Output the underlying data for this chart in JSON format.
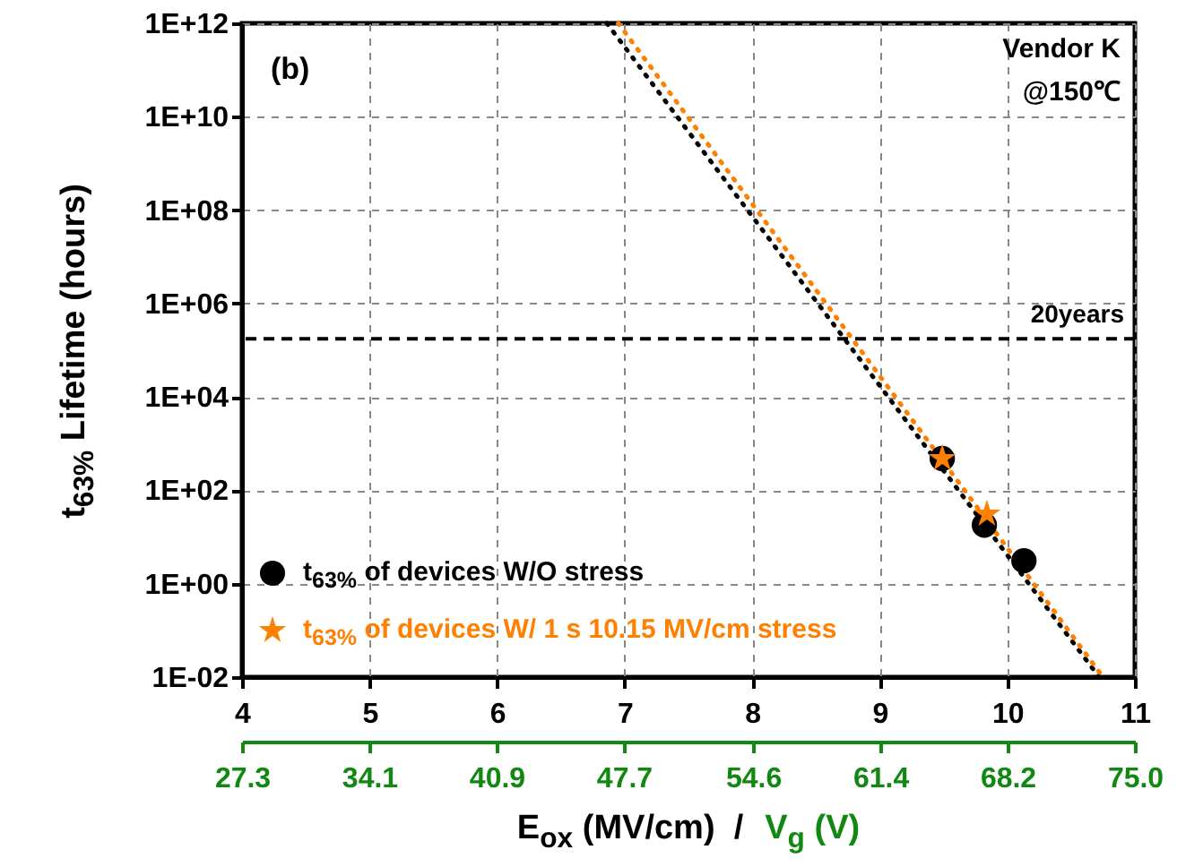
{
  "chart_data": {
    "type": "scatter",
    "xlabel": "E$_{ox}$ (MV/cm)  /",
    "x2label": "V$_{g}$ (V)",
    "ylabel": "t$_{63%}$ Lifetime (hours)",
    "annotations": [
      "(b)",
      "Vendor K",
      "@150℃"
    ],
    "log": "y",
    "grid": true,
    "legend": "bottom left",
    "xlim": [
      4,
      11
    ],
    "xticks": [
      4,
      5,
      6,
      7,
      8,
      9,
      10,
      11
    ],
    "x2lim": [
      27.3,
      75.0
    ],
    "x2ticks": [
      27.3,
      34.1,
      40.9,
      47.7,
      54.6,
      61.4,
      68.2,
      {
        "value": 75.0,
        "label": "75.0"
      }
    ],
    "ylim": [
      0.01,
      1000000000000
    ],
    "yticks": [
      {
        "value": 0.01,
        "label": "1E-02"
      },
      {
        "value": 1,
        "label": "1E+00"
      },
      {
        "value": 100,
        "label": "1E+02"
      },
      {
        "value": 10000,
        "label": "1E+04"
      },
      {
        "value": 1000000,
        "label": "1E+06"
      },
      {
        "value": 100000000,
        "label": "1E+08"
      },
      {
        "value": 10000000000,
        "label": "1E+10"
      },
      {
        "value": 1000000000000,
        "label": "1E+12"
      }
    ],
    "ref_lines": [
      {
        "axis": "y",
        "value": 175200,
        "label": "20years",
        "line_style": "dashed",
        "color": "#000000"
      }
    ],
    "series": [
      {
        "type": "line",
        "color": "#000000",
        "line_style": "dotted",
        "marker": "none",
        "x": [
          6.86,
          10.72
        ],
        "values": [
          1000000000000,
          0.01
        ]
      },
      {
        "type": "line",
        "color": "#ff8000",
        "line_style": "dotted",
        "marker": "none",
        "x": [
          6.95,
          10.75
        ],
        "values": [
          1000000000000,
          0.01
        ]
      },
      {
        "name": "t$_{63%}$ of devices W/O stress",
        "color": "#000000",
        "marker": "circle",
        "x": [
          9.49,
          9.82,
          10.13
        ],
        "values": [
          480,
          18,
          3.1
        ]
      },
      {
        "name": "t$_{63%}$ of devices W/ 1 s 10.15 MV/cm stress",
        "color": "#ff8000",
        "marker": "star",
        "x": [
          9.49,
          9.84
        ],
        "values": [
          480,
          31
        ]
      }
    ]
  }
}
